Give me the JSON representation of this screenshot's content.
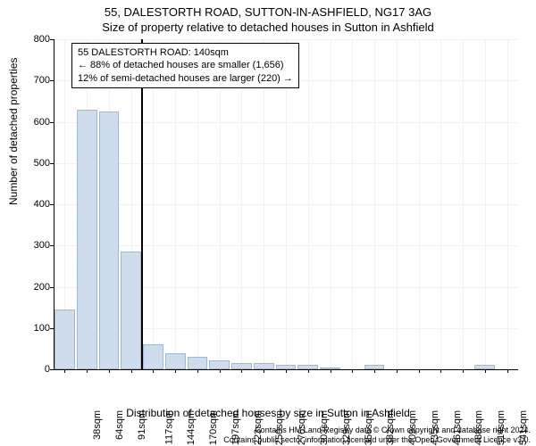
{
  "titles": {
    "line1": "55, DALESTORTH ROAD, SUTTON-IN-ASHFIELD, NG17 3AG",
    "line2": "Size of property relative to detached houses in Sutton in Ashfield"
  },
  "annotation": {
    "line1": "55 DALESTORTH ROAD: 140sqm",
    "line2": "← 88% of detached houses are smaller (1,656)",
    "line3": "12% of semi-detached houses are larger (220) →"
  },
  "axes": {
    "ylabel": "Number of detached properties",
    "xlabel": "Distribution of detached houses by size in Sutton in Ashfield",
    "ylim": [
      0,
      800
    ],
    "yticks": [
      0,
      100,
      200,
      300,
      400,
      500,
      600,
      700,
      800
    ]
  },
  "chart": {
    "type": "histogram",
    "bar_color": "#cfdcec",
    "bar_border_color": "#9fb8d6",
    "grid_color": "#eef2f7",
    "background_color": "#ffffff",
    "highlight_line_color": "#000000",
    "highlight_after_bar_index": 3,
    "categories": [
      "38sqm",
      "64sqm",
      "91sqm",
      "117sqm",
      "144sqm",
      "170sqm",
      "197sqm",
      "223sqm",
      "250sqm",
      "276sqm",
      "303sqm",
      "329sqm",
      "356sqm",
      "382sqm",
      "409sqm",
      "435sqm",
      "461sqm",
      "488sqm",
      "514sqm",
      "541sqm",
      "567sqm"
    ],
    "values": [
      145,
      630,
      625,
      285,
      60,
      40,
      30,
      22,
      15,
      15,
      10,
      10,
      5,
      0,
      10,
      0,
      0,
      0,
      0,
      10,
      0
    ]
  },
  "attribution": {
    "line1": "Contains HM Land Registry data © Crown copyright and database right 2024.",
    "line2": "Contains public sector information licensed under the Open Government Licence v3.0."
  },
  "fonts": {
    "title_size": 13,
    "label_size": 12,
    "tick_size": 11,
    "annotation_size": 11,
    "attribution_size": 9
  }
}
